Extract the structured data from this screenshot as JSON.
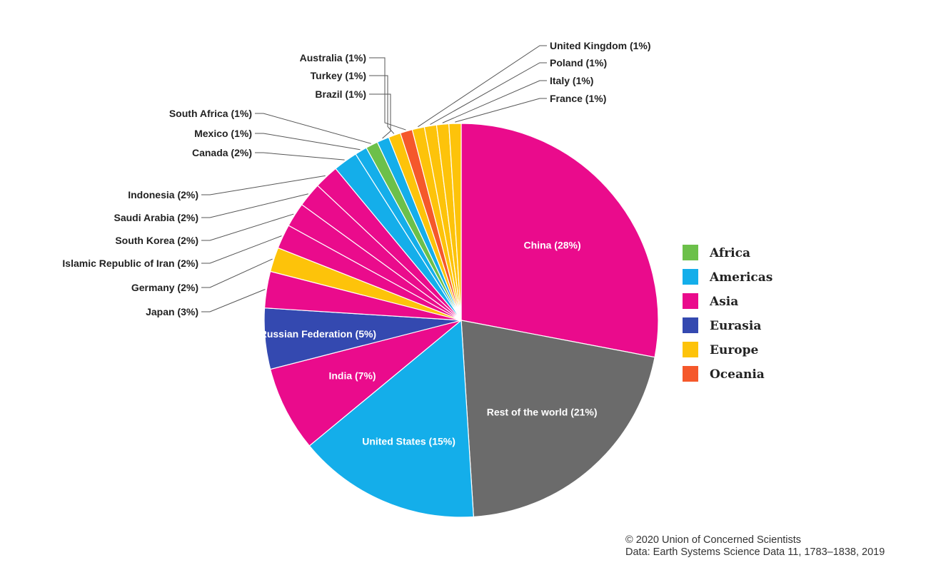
{
  "chart_data": {
    "type": "pie",
    "slices": [
      {
        "name": "China",
        "label": "China (28%)",
        "value": 28,
        "region": "Asia"
      },
      {
        "name": "Rest of the world",
        "label": "Rest of the world (21%)",
        "value": 21,
        "region": "Rest of the world"
      },
      {
        "name": "United States",
        "label": "United States (15%)",
        "value": 15,
        "region": "Americas"
      },
      {
        "name": "India",
        "label": "India (7%)",
        "value": 7,
        "region": "Asia"
      },
      {
        "name": "Russian Federation",
        "label": "Russian Federation (5%)",
        "value": 5,
        "region": "Eurasia"
      },
      {
        "name": "Japan",
        "label": "Japan (3%)",
        "value": 3,
        "region": "Asia"
      },
      {
        "name": "Germany",
        "label": "Germany (2%)",
        "value": 2,
        "region": "Europe"
      },
      {
        "name": "Islamic Republic of Iran",
        "label": "Islamic Republic of Iran (2%)",
        "value": 2,
        "region": "Asia"
      },
      {
        "name": "South Korea",
        "label": "South Korea (2%)",
        "value": 2,
        "region": "Asia"
      },
      {
        "name": "Saudi Arabia",
        "label": "Saudi Arabia (2%)",
        "value": 2,
        "region": "Asia"
      },
      {
        "name": "Indonesia",
        "label": "Indonesia (2%)",
        "value": 2,
        "region": "Asia"
      },
      {
        "name": "Canada",
        "label": "Canada (2%)",
        "value": 2,
        "region": "Americas"
      },
      {
        "name": "Mexico",
        "label": "Mexico (1%)",
        "value": 1,
        "region": "Americas"
      },
      {
        "name": "South Africa",
        "label": "South Africa (1%)",
        "value": 1,
        "region": "Africa"
      },
      {
        "name": "Brazil",
        "label": "Brazil (1%)",
        "value": 1,
        "region": "Americas"
      },
      {
        "name": "Turkey",
        "label": "Turkey (1%)",
        "value": 1,
        "region": "Europe"
      },
      {
        "name": "Australia",
        "label": "Australia (1%)",
        "value": 1,
        "region": "Oceania"
      },
      {
        "name": "United Kingdom",
        "label": "United Kingdom (1%)",
        "value": 1,
        "region": "Europe"
      },
      {
        "name": "Poland",
        "label": "Poland (1%)",
        "value": 1,
        "region": "Europe"
      },
      {
        "name": "Italy",
        "label": "Italy (1%)",
        "value": 1,
        "region": "Europe"
      },
      {
        "name": "France",
        "label": "France (1%)",
        "value": 1,
        "region": "Europe"
      }
    ],
    "legend": [
      {
        "name": "Africa",
        "color": "#6cc04a"
      },
      {
        "name": "Americas",
        "color": "#14aeea"
      },
      {
        "name": "Asia",
        "color": "#ea0b8c"
      },
      {
        "name": "Eurasia",
        "color": "#3449b0"
      },
      {
        "name": "Europe",
        "color": "#fdc30a"
      },
      {
        "name": "Oceania",
        "color": "#f5582b"
      }
    ],
    "rest_color": "#6b6b6b",
    "legend_position": "right"
  },
  "credit": {
    "line1": "© 2020 Union of Concerned Scientists",
    "line2": "Data: Earth Systems Science Data 11, 1783–1838, 2019"
  }
}
